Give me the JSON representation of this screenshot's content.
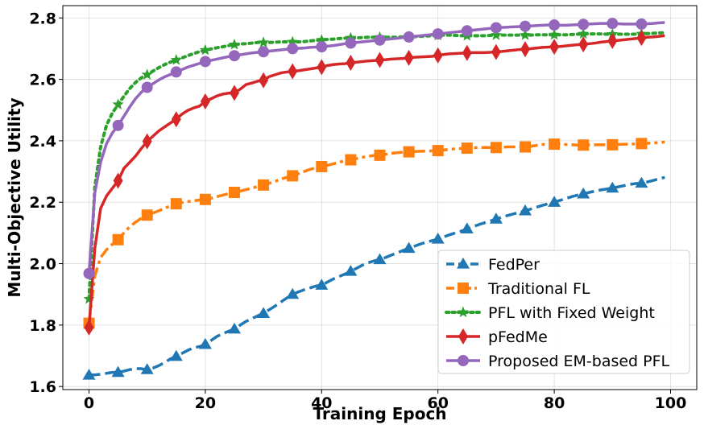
{
  "chart_data": {
    "type": "line",
    "title": "",
    "xlabel": "Training Epoch",
    "ylabel": "Multi-Objective Utility",
    "xlim": [
      -4.5,
      104.5
    ],
    "ylim": [
      1.59,
      2.84
    ],
    "xticks": [
      0,
      20,
      40,
      60,
      80,
      100
    ],
    "yticks": [
      1.6,
      1.8,
      2.0,
      2.2,
      2.4,
      2.6,
      2.8
    ],
    "xtick_labels": [
      "0",
      "20",
      "40",
      "60",
      "80",
      "100"
    ],
    "ytick_labels": [
      "1.6",
      "1.8",
      "2.0",
      "2.2",
      "2.4",
      "2.6",
      "2.8"
    ],
    "grid": true,
    "legend_position": "bottom-right",
    "series": [
      {
        "name": "FedPer",
        "color": "#1f77b4",
        "linestyle": "dashed",
        "marker": "triangle",
        "x": [
          0,
          1,
          2,
          3,
          4,
          5,
          6,
          7,
          8,
          9,
          10,
          11,
          12,
          13,
          14,
          15,
          16,
          17,
          18,
          19,
          20,
          21,
          22,
          23,
          24,
          25,
          26,
          27,
          28,
          29,
          30,
          31,
          32,
          33,
          34,
          35,
          36,
          37,
          38,
          39,
          40,
          41,
          42,
          43,
          44,
          45,
          46,
          47,
          48,
          49,
          50,
          51,
          52,
          53,
          54,
          55,
          56,
          57,
          58,
          59,
          60,
          61,
          62,
          63,
          64,
          65,
          66,
          67,
          68,
          69,
          70,
          71,
          72,
          73,
          74,
          75,
          76,
          77,
          78,
          79,
          80,
          81,
          82,
          83,
          84,
          85,
          86,
          87,
          88,
          89,
          90,
          91,
          92,
          93,
          94,
          95,
          96,
          97,
          98,
          99
        ],
        "values": [
          1.637,
          1.638,
          1.64,
          1.643,
          1.646,
          1.646,
          1.65,
          1.655,
          1.658,
          1.658,
          1.655,
          1.66,
          1.668,
          1.678,
          1.69,
          1.698,
          1.708,
          1.718,
          1.726,
          1.73,
          1.737,
          1.75,
          1.763,
          1.772,
          1.78,
          1.787,
          1.8,
          1.812,
          1.821,
          1.83,
          1.838,
          1.85,
          1.862,
          1.875,
          1.888,
          1.9,
          1.908,
          1.915,
          1.921,
          1.927,
          1.93,
          1.94,
          1.95,
          1.958,
          1.966,
          1.975,
          1.985,
          1.995,
          2.003,
          2.009,
          2.013,
          2.02,
          2.028,
          2.035,
          2.043,
          2.05,
          2.057,
          2.064,
          2.07,
          2.075,
          2.08,
          2.087,
          2.094,
          2.1,
          2.106,
          2.113,
          2.12,
          2.127,
          2.133,
          2.139,
          2.145,
          2.151,
          2.157,
          2.162,
          2.167,
          2.172,
          2.178,
          2.184,
          2.19,
          2.195,
          2.2,
          2.206,
          2.212,
          2.218,
          2.223,
          2.227,
          2.232,
          2.236,
          2.24,
          2.243,
          2.246,
          2.25,
          2.254,
          2.258,
          2.261,
          2.262,
          2.266,
          2.271,
          2.276,
          2.281
        ],
        "marker_x": [
          0,
          5,
          10,
          15,
          20,
          25,
          30,
          35,
          40,
          45,
          50,
          55,
          60,
          65,
          70,
          75,
          80,
          85,
          90,
          95
        ]
      },
      {
        "name": "Traditional FL",
        "color": "#ff7f0e",
        "linestyle": "dashdot",
        "marker": "square",
        "x": [
          0,
          1,
          2,
          3,
          4,
          5,
          6,
          7,
          8,
          9,
          10,
          11,
          12,
          13,
          14,
          15,
          16,
          17,
          18,
          19,
          20,
          21,
          22,
          23,
          24,
          25,
          26,
          27,
          28,
          29,
          30,
          31,
          32,
          33,
          34,
          35,
          36,
          37,
          38,
          39,
          40,
          41,
          42,
          43,
          44,
          45,
          46,
          47,
          48,
          49,
          50,
          51,
          52,
          53,
          54,
          55,
          56,
          57,
          58,
          59,
          60,
          61,
          62,
          63,
          64,
          65,
          66,
          67,
          68,
          69,
          70,
          71,
          72,
          73,
          74,
          75,
          76,
          77,
          78,
          79,
          80,
          81,
          82,
          83,
          84,
          85,
          86,
          87,
          88,
          89,
          90,
          91,
          92,
          93,
          94,
          95,
          96,
          97,
          98,
          99
        ],
        "values": [
          1.806,
          1.96,
          2.02,
          2.045,
          2.063,
          2.078,
          2.1,
          2.12,
          2.135,
          2.148,
          2.158,
          2.165,
          2.172,
          2.18,
          2.188,
          2.195,
          2.199,
          2.202,
          2.205,
          2.207,
          2.209,
          2.213,
          2.218,
          2.223,
          2.228,
          2.232,
          2.236,
          2.241,
          2.246,
          2.251,
          2.256,
          2.262,
          2.268,
          2.275,
          2.281,
          2.286,
          2.293,
          2.3,
          2.307,
          2.312,
          2.316,
          2.32,
          2.325,
          2.33,
          2.335,
          2.338,
          2.342,
          2.346,
          2.35,
          2.352,
          2.353,
          2.356,
          2.359,
          2.361,
          2.363,
          2.364,
          2.365,
          2.366,
          2.367,
          2.367,
          2.368,
          2.37,
          2.372,
          2.374,
          2.375,
          2.376,
          2.377,
          2.378,
          2.378,
          2.378,
          2.378,
          2.379,
          2.38,
          2.38,
          2.38,
          2.38,
          2.382,
          2.385,
          2.388,
          2.389,
          2.389,
          2.389,
          2.388,
          2.387,
          2.386,
          2.386,
          2.387,
          2.387,
          2.387,
          2.387,
          2.387,
          2.388,
          2.389,
          2.389,
          2.39,
          2.391,
          2.392,
          2.393,
          2.394,
          2.396
        ],
        "marker_x": [
          0,
          5,
          10,
          15,
          20,
          25,
          30,
          35,
          40,
          45,
          50,
          55,
          60,
          65,
          70,
          75,
          80,
          85,
          90,
          95
        ]
      },
      {
        "name": "PFL with Fixed Weight",
        "color": "#2ca02c",
        "linestyle": "dotted",
        "marker": "star",
        "x": [
          0,
          1,
          2,
          3,
          4,
          5,
          6,
          7,
          8,
          9,
          10,
          11,
          12,
          13,
          14,
          15,
          16,
          17,
          18,
          19,
          20,
          21,
          22,
          23,
          24,
          25,
          26,
          27,
          28,
          29,
          30,
          31,
          32,
          33,
          34,
          35,
          36,
          37,
          38,
          39,
          40,
          41,
          42,
          43,
          44,
          45,
          46,
          47,
          48,
          49,
          50,
          51,
          52,
          53,
          54,
          55,
          56,
          57,
          58,
          59,
          60,
          61,
          62,
          63,
          64,
          65,
          66,
          67,
          68,
          69,
          70,
          71,
          72,
          73,
          74,
          75,
          76,
          77,
          78,
          79,
          80,
          81,
          82,
          83,
          84,
          85,
          86,
          87,
          88,
          89,
          90,
          91,
          92,
          93,
          94,
          95,
          96,
          97,
          98,
          99
        ],
        "values": [
          1.885,
          2.25,
          2.38,
          2.45,
          2.49,
          2.518,
          2.545,
          2.57,
          2.59,
          2.605,
          2.615,
          2.627,
          2.638,
          2.648,
          2.656,
          2.663,
          2.67,
          2.677,
          2.684,
          2.69,
          2.695,
          2.699,
          2.703,
          2.706,
          2.71,
          2.713,
          2.715,
          2.716,
          2.718,
          2.72,
          2.72,
          2.72,
          2.721,
          2.722,
          2.722,
          2.722,
          2.722,
          2.723,
          2.725,
          2.727,
          2.728,
          2.73,
          2.731,
          2.733,
          2.734,
          2.735,
          2.735,
          2.736,
          2.737,
          2.737,
          2.737,
          2.737,
          2.737,
          2.737,
          2.738,
          2.738,
          2.739,
          2.74,
          2.741,
          2.742,
          2.743,
          2.744,
          2.744,
          2.743,
          2.742,
          2.742,
          2.742,
          2.742,
          2.742,
          2.743,
          2.744,
          2.744,
          2.744,
          2.744,
          2.744,
          2.744,
          2.744,
          2.745,
          2.745,
          2.745,
          2.745,
          2.745,
          2.745,
          2.746,
          2.747,
          2.748,
          2.748,
          2.748,
          2.748,
          2.747,
          2.747,
          2.747,
          2.747,
          2.747,
          2.747,
          2.748,
          2.749,
          2.75,
          2.751,
          2.752
        ],
        "marker_x": [
          0,
          5,
          10,
          15,
          20,
          25,
          30,
          35,
          40,
          45,
          50,
          55,
          60,
          65,
          70,
          75,
          80,
          85,
          90,
          95
        ]
      },
      {
        "name": "pFedMe",
        "color": "#d62728",
        "linestyle": "solid",
        "marker": "diamond",
        "x": [
          0,
          1,
          2,
          3,
          4,
          5,
          6,
          7,
          8,
          9,
          10,
          11,
          12,
          13,
          14,
          15,
          16,
          17,
          18,
          19,
          20,
          21,
          22,
          23,
          24,
          25,
          26,
          27,
          28,
          29,
          30,
          31,
          32,
          33,
          34,
          35,
          36,
          37,
          38,
          39,
          40,
          41,
          42,
          43,
          44,
          45,
          46,
          47,
          48,
          49,
          50,
          51,
          52,
          53,
          54,
          55,
          56,
          57,
          58,
          59,
          60,
          61,
          62,
          63,
          64,
          65,
          66,
          67,
          68,
          69,
          70,
          71,
          72,
          73,
          74,
          75,
          76,
          77,
          78,
          79,
          80,
          81,
          82,
          83,
          84,
          85,
          86,
          87,
          88,
          89,
          90,
          91,
          92,
          93,
          94,
          95,
          96,
          97,
          98,
          99
        ],
        "values": [
          1.792,
          2.05,
          2.18,
          2.22,
          2.245,
          2.27,
          2.31,
          2.33,
          2.35,
          2.375,
          2.398,
          2.415,
          2.432,
          2.445,
          2.458,
          2.47,
          2.487,
          2.499,
          2.507,
          2.513,
          2.528,
          2.537,
          2.546,
          2.552,
          2.555,
          2.556,
          2.568,
          2.583,
          2.588,
          2.594,
          2.597,
          2.609,
          2.615,
          2.621,
          2.624,
          2.626,
          2.628,
          2.631,
          2.634,
          2.637,
          2.64,
          2.645,
          2.648,
          2.65,
          2.651,
          2.654,
          2.656,
          2.658,
          2.66,
          2.661,
          2.663,
          2.664,
          2.666,
          2.667,
          2.668,
          2.67,
          2.672,
          2.673,
          2.674,
          2.675,
          2.678,
          2.681,
          2.683,
          2.684,
          2.685,
          2.686,
          2.687,
          2.687,
          2.687,
          2.688,
          2.689,
          2.691,
          2.693,
          2.695,
          2.697,
          2.698,
          2.7,
          2.702,
          2.704,
          2.705,
          2.706,
          2.707,
          2.709,
          2.711,
          2.713,
          2.714,
          2.716,
          2.718,
          2.721,
          2.723,
          2.725,
          2.727,
          2.729,
          2.731,
          2.733,
          2.735,
          2.737,
          2.738,
          2.74,
          2.742
        ],
        "marker_x": [
          0,
          5,
          10,
          15,
          20,
          25,
          30,
          35,
          40,
          45,
          50,
          55,
          60,
          65,
          70,
          75,
          80,
          85,
          90,
          95
        ]
      },
      {
        "name": "Proposed EM-based PFL",
        "color": "#9467bd",
        "linestyle": "solid",
        "marker": "circle",
        "x": [
          0,
          1,
          2,
          3,
          4,
          5,
          6,
          7,
          8,
          9,
          10,
          11,
          12,
          13,
          14,
          15,
          16,
          17,
          18,
          19,
          20,
          21,
          22,
          23,
          24,
          25,
          26,
          27,
          28,
          29,
          30,
          31,
          32,
          33,
          34,
          35,
          36,
          37,
          38,
          39,
          40,
          41,
          42,
          43,
          44,
          45,
          46,
          47,
          48,
          49,
          50,
          51,
          52,
          53,
          54,
          55,
          56,
          57,
          58,
          59,
          60,
          61,
          62,
          63,
          64,
          65,
          66,
          67,
          68,
          69,
          70,
          71,
          72,
          73,
          74,
          75,
          76,
          77,
          78,
          79,
          80,
          81,
          82,
          83,
          84,
          85,
          86,
          87,
          88,
          89,
          90,
          91,
          92,
          93,
          94,
          95,
          96,
          97,
          98,
          99
        ],
        "values": [
          1.968,
          2.23,
          2.33,
          2.39,
          2.425,
          2.45,
          2.48,
          2.51,
          2.537,
          2.558,
          2.574,
          2.586,
          2.598,
          2.608,
          2.616,
          2.624,
          2.632,
          2.64,
          2.646,
          2.652,
          2.658,
          2.662,
          2.666,
          2.67,
          2.674,
          2.677,
          2.68,
          2.683,
          2.686,
          2.688,
          2.69,
          2.692,
          2.694,
          2.696,
          2.698,
          2.7,
          2.701,
          2.702,
          2.704,
          2.705,
          2.706,
          2.708,
          2.71,
          2.713,
          2.716,
          2.718,
          2.72,
          2.722,
          2.724,
          2.726,
          2.728,
          2.73,
          2.732,
          2.734,
          2.736,
          2.738,
          2.74,
          2.742,
          2.744,
          2.746,
          2.748,
          2.75,
          2.752,
          2.754,
          2.756,
          2.758,
          2.76,
          2.762,
          2.764,
          2.766,
          2.768,
          2.769,
          2.77,
          2.771,
          2.772,
          2.773,
          2.774,
          2.775,
          2.776,
          2.777,
          2.777,
          2.776,
          2.776,
          2.777,
          2.778,
          2.779,
          2.78,
          2.781,
          2.782,
          2.782,
          2.782,
          2.781,
          2.78,
          2.78,
          2.78,
          2.78,
          2.781,
          2.782,
          2.784,
          2.785
        ],
        "marker_x": [
          0,
          5,
          10,
          15,
          20,
          25,
          30,
          35,
          40,
          45,
          50,
          55,
          60,
          65,
          70,
          75,
          80,
          85,
          90,
          95
        ]
      }
    ]
  }
}
